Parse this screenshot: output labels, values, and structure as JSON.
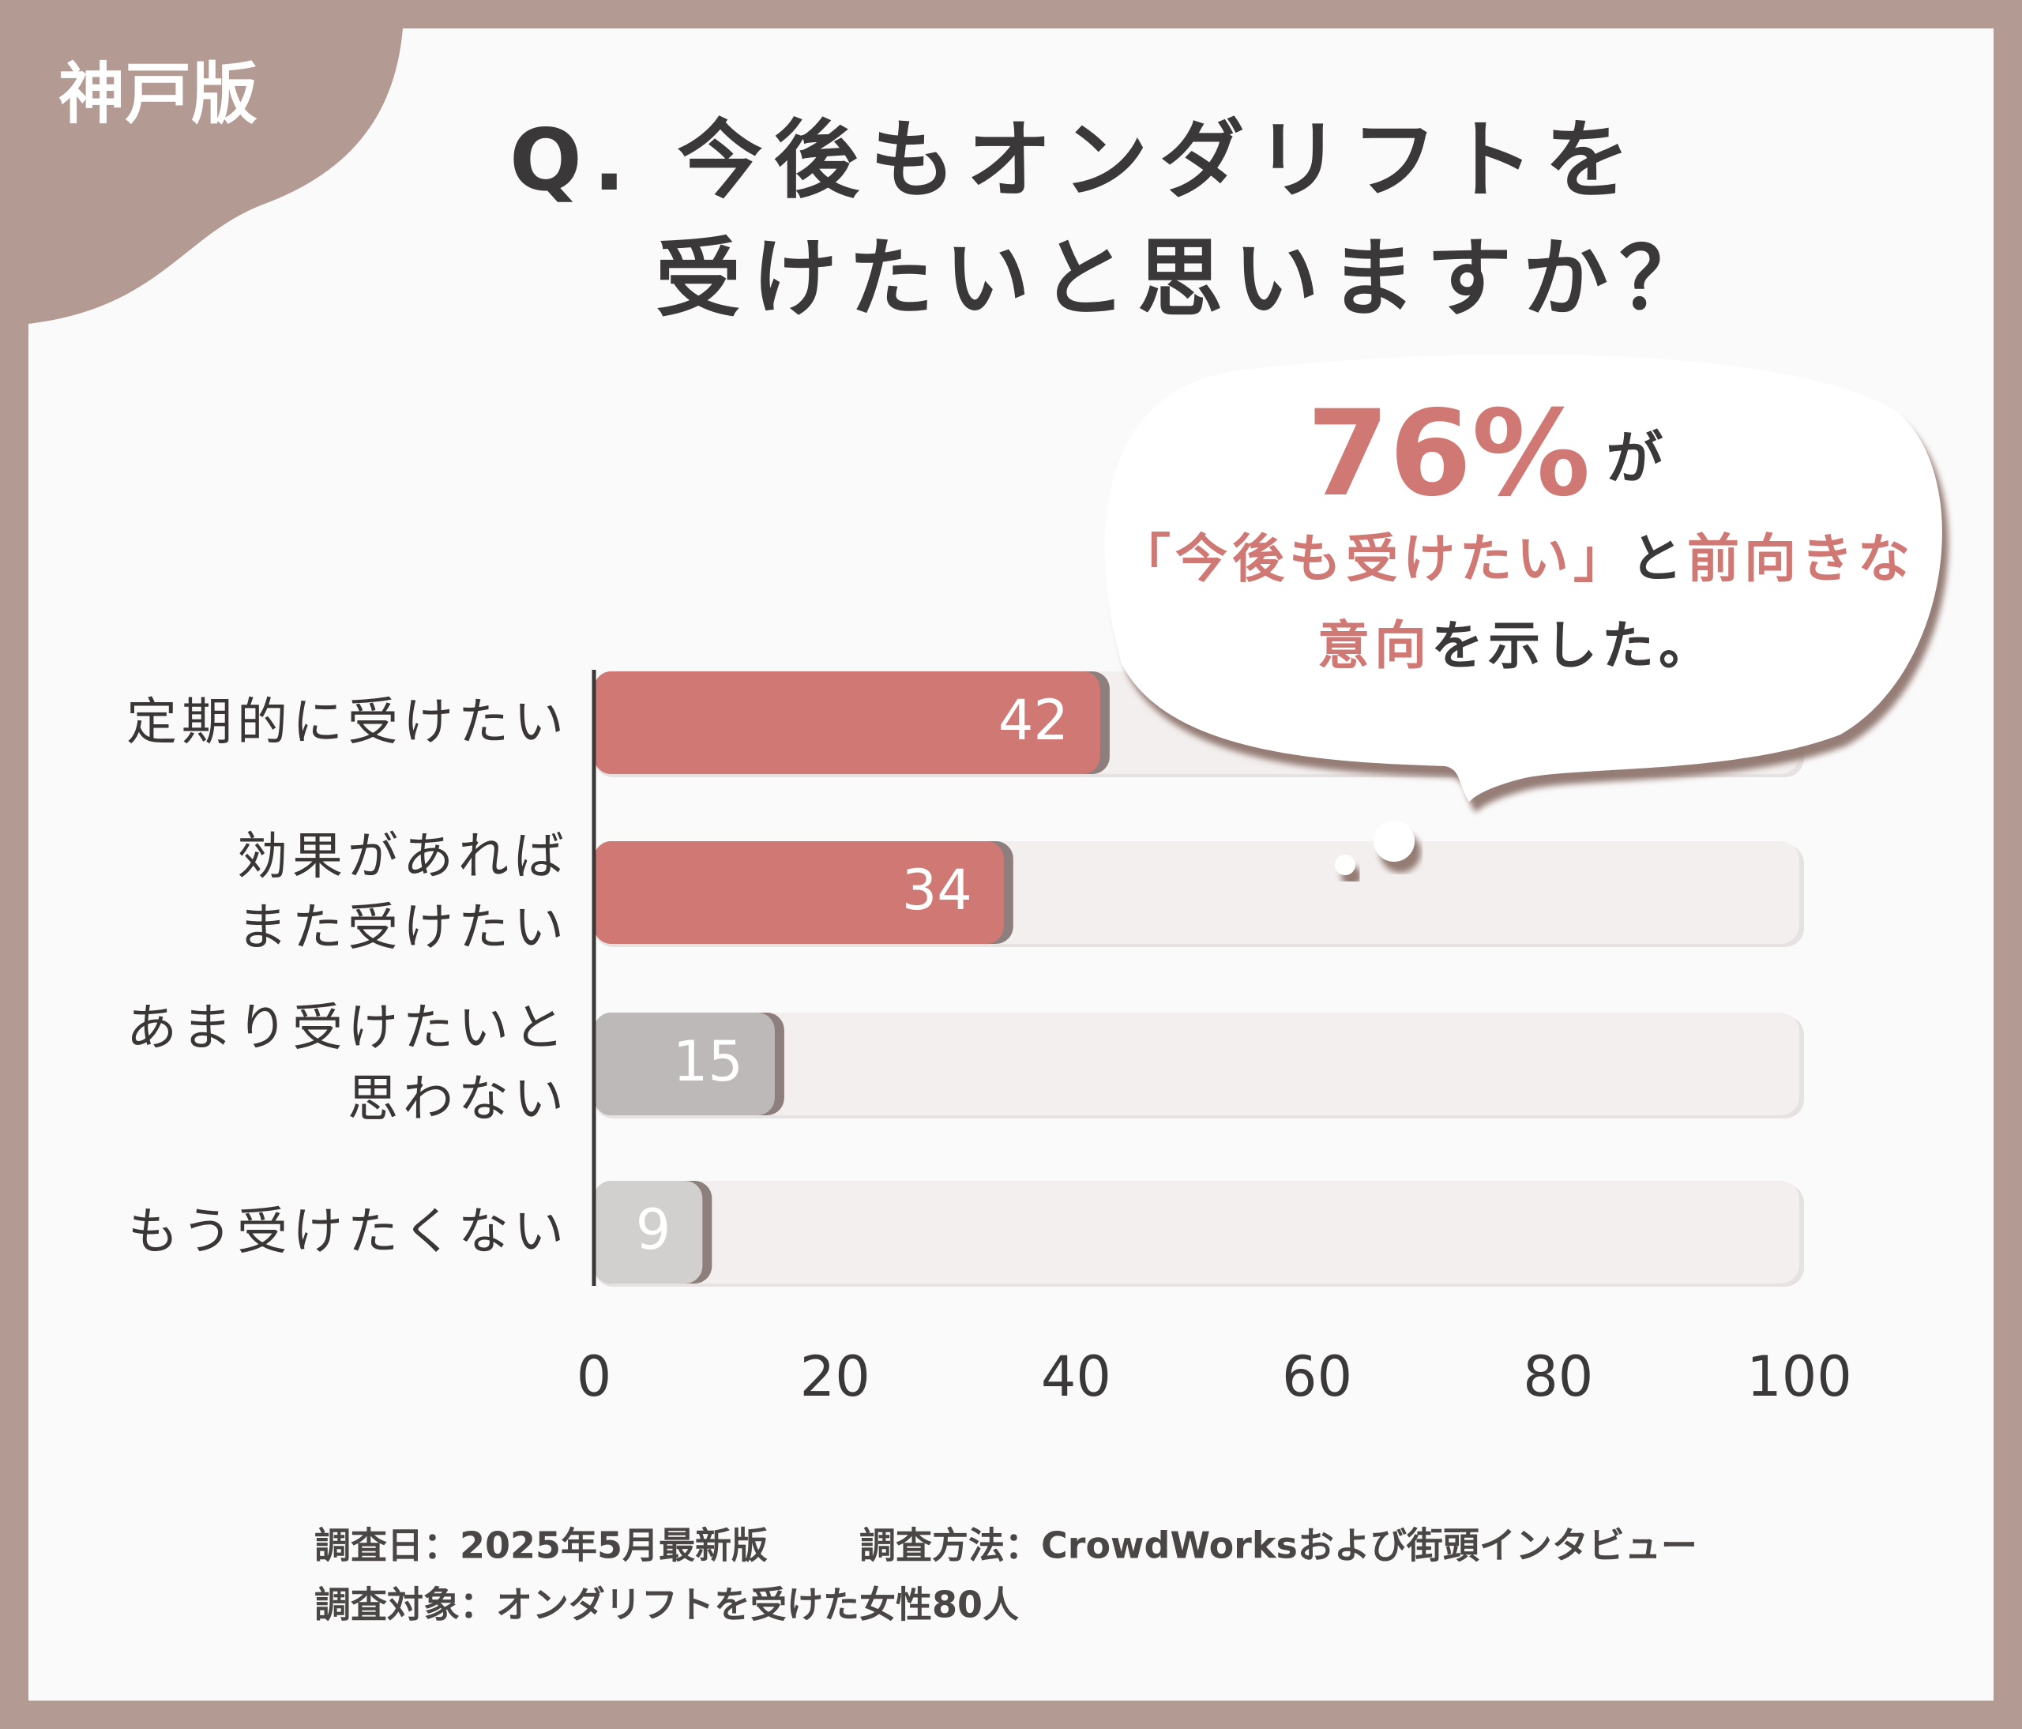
{
  "badge": "神戸版",
  "title": [
    "Q. 今後もオンダリフトを",
    "受けたいと思いますか？"
  ],
  "callout": {
    "headline": "76%",
    "headline_suffix": "が",
    "lines": [
      [
        "「今後も受けたい」",
        "と",
        "前向きな"
      ],
      [
        "意向",
        "を示した。"
      ]
    ]
  },
  "chart_data": {
    "type": "bar",
    "orientation": "horizontal",
    "categories": [
      "定期的に受けたい",
      "効果があれば\nまた受けたい",
      "あまり受けたいと\n思わない",
      "もう受けたくない"
    ],
    "values": [
      42,
      34,
      15,
      9
    ],
    "colors": [
      "#d07874",
      "#d07874",
      "#bcb9b8",
      "#d2d0cf"
    ],
    "xlim": [
      0,
      100
    ],
    "xticks": [
      0,
      20,
      40,
      60,
      80,
      100
    ]
  },
  "footer": [
    [
      "調査日：2025年5月最新版",
      "調査方法：CrowdWorksおよび街頭インタビュー"
    ],
    [
      "調査対象：オンダリフトを受けた女性80人"
    ]
  ]
}
